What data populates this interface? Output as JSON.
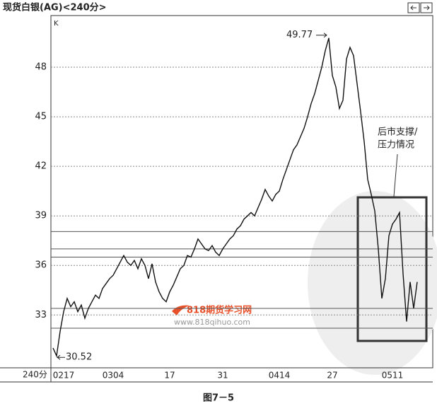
{
  "chart_data": {
    "type": "line",
    "title": "现货白银(AG)<240分>",
    "period_label": "240分",
    "axis_marker": "K",
    "caption": "图7－5",
    "watermark": {
      "name": "818期货学习网",
      "url": "www.818qihuo.com"
    },
    "high": 49.77,
    "low": 30.52,
    "note": [
      "后市支撑/",
      "压力情况"
    ],
    "color": "#111111",
    "categories": [
      null,
      null,
      null,
      "0217",
      null,
      null,
      null,
      null,
      null,
      null,
      null,
      null,
      null,
      null,
      null,
      null,
      null,
      "0304",
      null,
      null,
      null,
      null,
      null,
      null,
      null,
      null,
      null,
      null,
      null,
      null,
      null,
      null,
      null,
      "17",
      null,
      null,
      null,
      null,
      null,
      null,
      null,
      null,
      null,
      null,
      null,
      null,
      null,
      null,
      "31",
      null,
      null,
      null,
      null,
      null,
      null,
      null,
      null,
      null,
      null,
      null,
      null,
      null,
      null,
      null,
      "0414",
      null,
      null,
      null,
      null,
      null,
      null,
      null,
      null,
      null,
      null,
      null,
      null,
      null,
      null,
      "27",
      null,
      null,
      null,
      null,
      null,
      null,
      null,
      null,
      null,
      null,
      null,
      null,
      null,
      null,
      null,
      null,
      "0511",
      null,
      null,
      null,
      null,
      null,
      null,
      null
    ],
    "values": [
      31.0,
      30.52,
      32.0,
      33.2,
      34.0,
      33.5,
      33.8,
      33.2,
      33.6,
      32.8,
      33.4,
      33.8,
      34.2,
      34.0,
      34.6,
      34.9,
      35.2,
      35.4,
      35.8,
      36.2,
      36.6,
      36.2,
      36.0,
      36.3,
      35.8,
      36.4,
      36.0,
      35.2,
      36.1,
      35.0,
      34.4,
      34.0,
      33.8,
      34.4,
      34.8,
      35.3,
      35.8,
      36.0,
      36.6,
      36.5,
      37.0,
      37.6,
      37.3,
      37.0,
      36.9,
      37.2,
      36.8,
      36.6,
      37.0,
      37.3,
      37.6,
      37.8,
      38.2,
      38.4,
      38.8,
      39.0,
      39.2,
      39.0,
      39.5,
      40.0,
      40.6,
      40.2,
      39.9,
      40.3,
      40.5,
      41.2,
      41.8,
      42.4,
      43.0,
      43.3,
      43.8,
      44.3,
      45.0,
      45.8,
      46.4,
      47.2,
      48.0,
      49.0,
      49.77,
      47.5,
      46.8,
      45.5,
      46.0,
      48.5,
      49.2,
      48.7,
      47.0,
      45.3,
      43.5,
      41.2,
      40.3,
      39.3,
      37.0,
      34.0,
      35.2,
      37.8,
      38.5,
      38.8,
      39.2,
      35.5,
      32.6,
      35.0,
      33.4,
      35.0
    ],
    "hlines": [
      38.05,
      37.0,
      36.5,
      33.4,
      32.2
    ],
    "ylim": [
      29.8,
      51
    ],
    "yticks": [
      33,
      36,
      39,
      42,
      45,
      48
    ],
    "grid": true
  }
}
